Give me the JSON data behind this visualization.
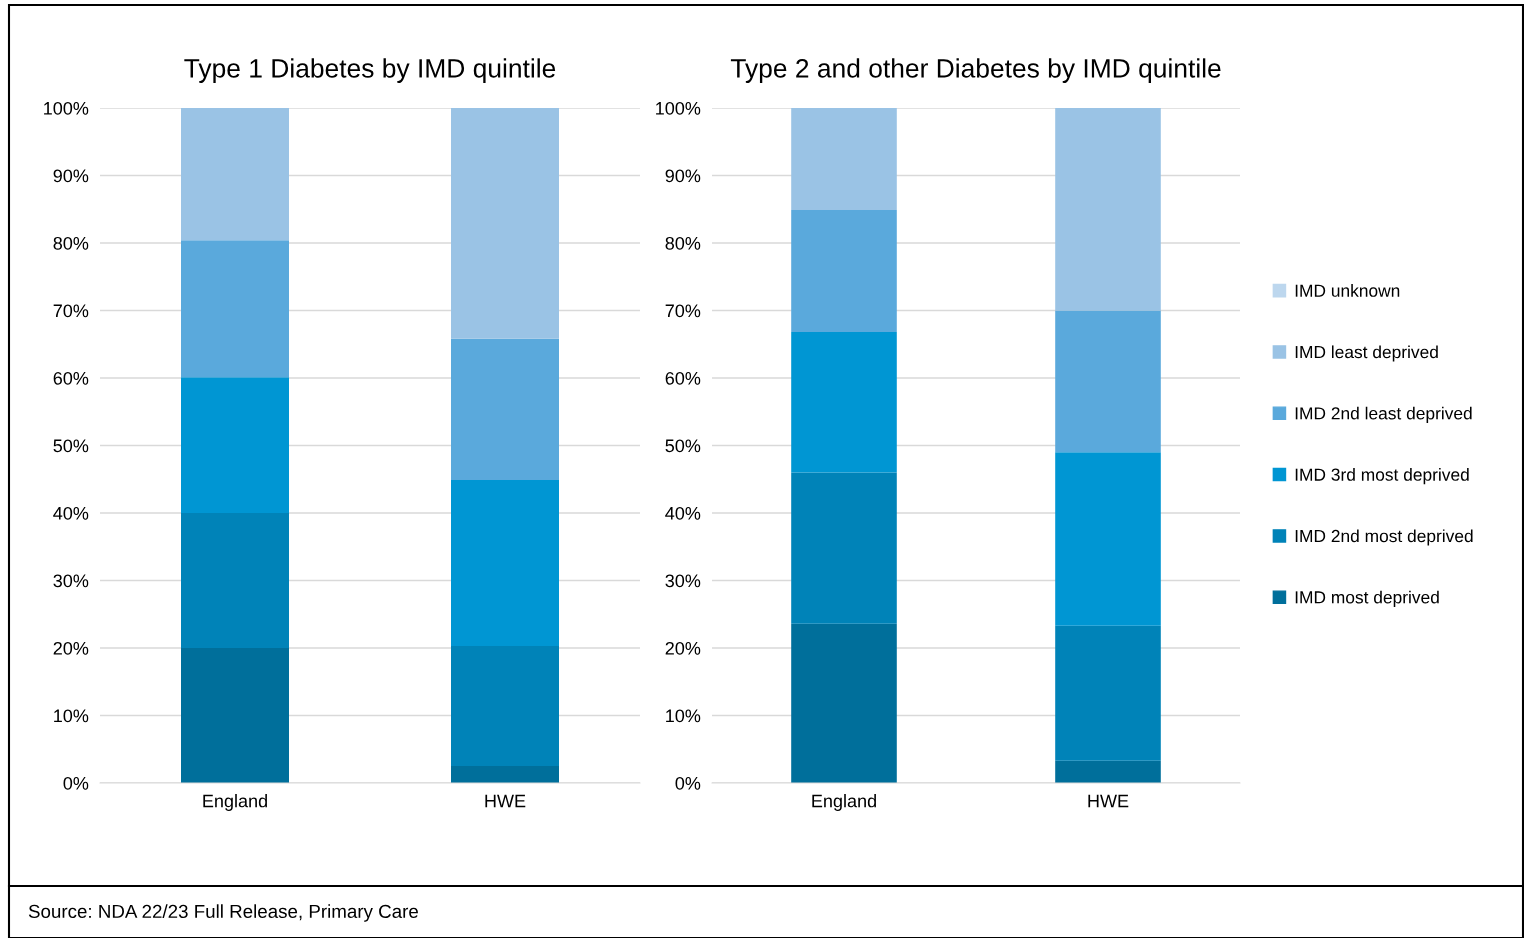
{
  "chart_data": [
    {
      "type": "bar",
      "stacked": true,
      "title": "Type 1 Diabetes by IMD quintile",
      "categories": [
        "England",
        "HWE"
      ],
      "series": [
        {
          "color": "#006f9b",
          "values": [
            20,
            2.5
          ]
        },
        {
          "color": "#0083b8",
          "values": [
            20,
            17.8
          ]
        },
        {
          "color": "#0096d3",
          "values": [
            20.1,
            24.6
          ]
        },
        {
          "color": "#5aa9dc",
          "values": [
            20.3,
            20.9
          ]
        },
        {
          "color": "#9ac3e5",
          "values": [
            19.6,
            34.2
          ]
        },
        {
          "color": "#bdd7ee",
          "values": [
            0,
            0
          ]
        }
      ],
      "ylim": [
        0,
        100
      ],
      "yticks": [
        {
          "value": 0,
          "label": "0%"
        },
        {
          "value": 10,
          "label": "10%"
        },
        {
          "value": 20,
          "label": "20%"
        },
        {
          "value": 30,
          "label": "30%"
        },
        {
          "value": 40,
          "label": "40%"
        },
        {
          "value": 50,
          "label": "50%"
        },
        {
          "value": 60,
          "label": "60%"
        },
        {
          "value": 70,
          "label": "70%"
        },
        {
          "value": 80,
          "label": "80%"
        },
        {
          "value": 90,
          "label": "90%"
        },
        {
          "value": 100,
          "label": "100%"
        }
      ],
      "grid": "y",
      "annotations": [
        "Source: NDA 22/23 Full Release, Primary Care"
      ]
    },
    {
      "type": "bar",
      "stacked": true,
      "title": "Type 2 and other Diabetes by IMD quintile",
      "categories": [
        "England",
        "HWE"
      ],
      "series": [
        {
          "name": "IMD most deprived",
          "color": "#006f9b",
          "values": [
            23.6,
            3.3
          ]
        },
        {
          "name": "IMD 2nd most deprived",
          "color": "#0083b8",
          "values": [
            22.4,
            20.0
          ]
        },
        {
          "name": "IMD 3rd most deprived",
          "color": "#0096d3",
          "values": [
            20.8,
            25.7
          ]
        },
        {
          "name": "IMD 2nd least deprived",
          "color": "#5aa9dc",
          "values": [
            18.1,
            21.0
          ]
        },
        {
          "name": "IMD least deprived",
          "color": "#9ac3e5",
          "values": [
            15.1,
            30.0
          ]
        },
        {
          "name": "IMD unknown",
          "color": "#bdd7ee",
          "values": [
            0,
            0
          ]
        }
      ],
      "ylim": [
        0,
        100
      ],
      "yticks": [
        {
          "value": 0,
          "label": "0%"
        },
        {
          "value": 10,
          "label": "10%"
        },
        {
          "value": 20,
          "label": "20%"
        },
        {
          "value": 30,
          "label": "30%"
        },
        {
          "value": 40,
          "label": "40%"
        },
        {
          "value": 50,
          "label": "50%"
        },
        {
          "value": 60,
          "label": "60%"
        },
        {
          "value": 70,
          "label": "70%"
        },
        {
          "value": 80,
          "label": "80%"
        },
        {
          "value": 90,
          "label": "90%"
        },
        {
          "value": 100,
          "label": "100%"
        }
      ],
      "grid": "y",
      "legend": "right"
    }
  ]
}
